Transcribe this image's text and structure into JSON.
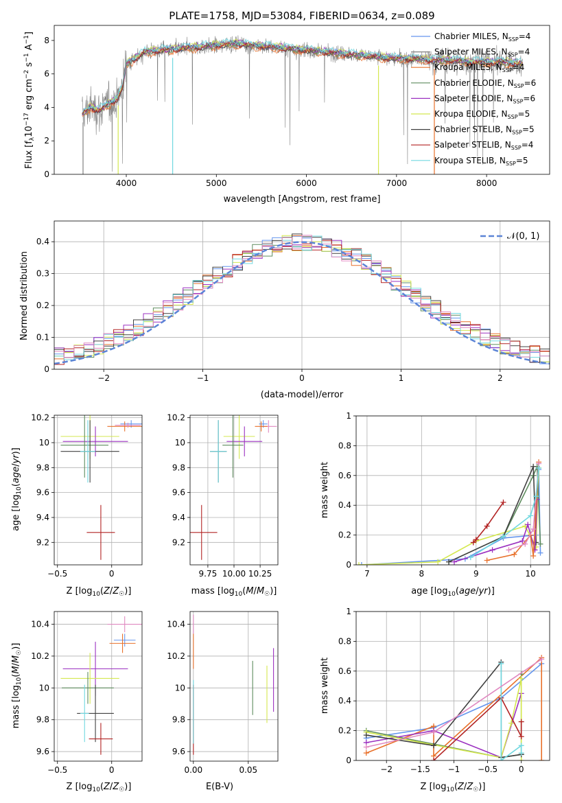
{
  "chart_data": [
    {
      "id": "spectrum",
      "type": "line",
      "title": "PLATE=1758, MJD=53084, FIBERID=0634, z=0.089",
      "xlabel": "wavelength [Angstrom, rest frame]",
      "ylabel": "Flux [f_λ 10^-17 erg cm^-2 s^-1 A^-1]",
      "xlim": [
        3200,
        8700
      ],
      "ylim": [
        0,
        8.9
      ],
      "xticks": [
        4000,
        5000,
        6000,
        7000,
        8000
      ],
      "yticks": [
        0,
        2,
        4,
        6,
        8
      ],
      "grid": false,
      "legend_position": "top-right",
      "observed_trend": {
        "x": [
          3500,
          3600,
          3700,
          3800,
          3900,
          3960,
          4000,
          4100,
          4200,
          4400,
          4600,
          4800,
          5000,
          5200,
          5400,
          5600,
          5800,
          6000,
          6200,
          6400,
          6600,
          6800,
          7000,
          7200,
          7400,
          7600,
          7800,
          8000,
          8200,
          8400
        ],
        "y": [
          3.5,
          4.0,
          3.8,
          4.2,
          4.5,
          5.2,
          6.6,
          6.9,
          7.3,
          7.4,
          7.5,
          7.6,
          7.7,
          7.8,
          7.7,
          7.6,
          7.5,
          7.4,
          7.3,
          7.2,
          7.1,
          7.0,
          6.9,
          6.9,
          6.8,
          6.8,
          6.7,
          6.7,
          6.7,
          6.6
        ]
      },
      "series": [
        {
          "name": "Chabrier MILES, N_SSP=4",
          "color": "#6495ed"
        },
        {
          "name": "Salpeter MILES, N_SSP=4",
          "color": "#808080"
        },
        {
          "name": "Kroupa MILES, N_SSP=4",
          "color": "#e8702a"
        },
        {
          "name": "Chabrier ELODIE, N_SSP=6",
          "color": "#5e8c5e"
        },
        {
          "name": "Salpeter ELODIE, N_SSP=6",
          "color": "#9b30c0"
        },
        {
          "name": "Kroupa ELODIE, N_SSP=5",
          "color": "#d4e84f"
        },
        {
          "name": "Chabrier STELIB, N_SSP=5",
          "color": "#404040"
        },
        {
          "name": "Salpeter STELIB, N_SSP=4",
          "color": "#b22222"
        },
        {
          "name": "Kroupa STELIB, N_SSP=5",
          "color": "#70d8e0"
        }
      ]
    },
    {
      "id": "residuals",
      "type": "line",
      "xlabel": "(data-model)/error",
      "ylabel": "Normed distribution",
      "xlim": [
        -2.5,
        2.5
      ],
      "ylim": [
        0,
        0.465
      ],
      "xticks": [
        -2,
        -1,
        0,
        1,
        2
      ],
      "yticks": [
        0.0,
        0.1,
        0.2,
        0.3,
        0.4
      ],
      "grid": true,
      "legend": "𝒩(0, 1)",
      "legend_position": "top-right",
      "histogram_colors": [
        "#6495ed",
        "#e8702a",
        "#5e8c5e",
        "#9b30c0",
        "#d4e84f",
        "#404040",
        "#b22222",
        "#70d8e0",
        "#e088c0"
      ],
      "bin_width": 0.1
    },
    {
      "id": "age-vs-z",
      "type": "scatter",
      "xlabel": "Z [log10(Z/Z☉)]",
      "ylabel": "age [log10(age/yr)]",
      "xlim": [
        -0.53,
        0.28
      ],
      "ylim": [
        9.02,
        10.22
      ],
      "xticks": [
        -0.5,
        0.0
      ],
      "yticks": [
        9.2,
        9.4,
        9.6,
        9.8,
        10.0,
        10.2
      ],
      "grid": true,
      "points": [
        {
          "color": "#6495ed",
          "x": 0.18,
          "xerr": 0.1,
          "y": 10.15,
          "yerr": 0.03
        },
        {
          "color": "#e8702a",
          "x": 0.12,
          "xerr": 0.16,
          "y": 10.13,
          "yerr": 0.04
        },
        {
          "color": "#e088c0",
          "x": 0.15,
          "xerr": 0.12,
          "y": 10.14,
          "yerr": 0.02
        },
        {
          "color": "#d4e84f",
          "x": -0.2,
          "xerr": 0.27,
          "y": 10.05,
          "yerr": 0.18
        },
        {
          "color": "#9b30c0",
          "x": -0.15,
          "xerr": 0.3,
          "y": 10.01,
          "yerr": 0.12
        },
        {
          "color": "#5e8c5e",
          "x": -0.25,
          "xerr": 0.22,
          "y": 9.98,
          "yerr": 0.26
        },
        {
          "color": "#404040",
          "x": -0.2,
          "xerr": 0.27,
          "y": 9.93,
          "yerr": 0.25
        },
        {
          "color": "#70d8e0",
          "x": -0.22,
          "xerr": 0.07,
          "y": 9.93,
          "yerr": 0.25
        },
        {
          "color": "#b22222",
          "x": -0.1,
          "xerr": 0.13,
          "y": 9.28,
          "yerr": 0.22
        }
      ]
    },
    {
      "id": "age-vs-mass",
      "type": "scatter",
      "xlabel": "mass [log10(M/M☉)]",
      "ylabel": "",
      "xlim": [
        9.58,
        10.42
      ],
      "ylim": [
        9.02,
        10.22
      ],
      "xticks": [
        9.75,
        10.0,
        10.25
      ],
      "xticklabels": [
        "9.75",
        "10.00",
        "10.25"
      ],
      "yticks": [
        9.2,
        9.4,
        9.6,
        9.8,
        10.0,
        10.2
      ],
      "grid": true,
      "points": [
        {
          "color": "#e088c0",
          "x": 10.33,
          "xerr": 0.08,
          "y": 10.13,
          "yerr": 0.05
        },
        {
          "color": "#6495ed",
          "x": 10.28,
          "xerr": 0.04,
          "y": 10.15,
          "yerr": 0.03
        },
        {
          "color": "#e8702a",
          "x": 10.26,
          "xerr": 0.06,
          "y": 10.13,
          "yerr": 0.04
        },
        {
          "color": "#d4e84f",
          "x": 10.05,
          "xerr": 0.15,
          "y": 10.05,
          "yerr": 0.18
        },
        {
          "color": "#9b30c0",
          "x": 10.1,
          "xerr": 0.17,
          "y": 10.01,
          "yerr": 0.12
        },
        {
          "color": "#5e8c5e",
          "x": 9.99,
          "xerr": 0.1,
          "y": 9.98,
          "yerr": 0.26
        },
        {
          "color": "#404040",
          "x": 9.85,
          "xerr": 0.08,
          "y": 9.93,
          "yerr": 0.25
        },
        {
          "color": "#70d8e0",
          "x": 9.85,
          "xerr": 0.08,
          "y": 9.93,
          "yerr": 0.25
        },
        {
          "color": "#b22222",
          "x": 9.69,
          "xerr": 0.15,
          "y": 9.28,
          "yerr": 0.22
        }
      ]
    },
    {
      "id": "mass-weight-vs-age",
      "type": "line",
      "xlabel": "age [log10(age/yr)]",
      "ylabel": "mass weight",
      "xlim": [
        6.8,
        10.35
      ],
      "ylim": [
        0,
        1.0
      ],
      "xticks": [
        7,
        8,
        9,
        10
      ],
      "yticks": [
        0.0,
        0.2,
        0.4,
        0.6,
        0.8,
        1.0
      ],
      "grid": true,
      "series": [
        {
          "color": "#6495ed",
          "x": [
            6.9,
            8.8,
            9.5,
            10.1,
            10.15,
            10.18
          ],
          "y": [
            0.0,
            0.04,
            0.18,
            0.2,
            0.64,
            0.08
          ]
        },
        {
          "color": "#d4e84f",
          "x": [
            6.85,
            8.3,
            9.0,
            9.9,
            10.1,
            10.15
          ],
          "y": [
            0.0,
            0.02,
            0.16,
            0.26,
            0.12,
            0.65
          ]
        },
        {
          "color": "#5e8c5e",
          "x": [
            8.5,
            9.5,
            10.05,
            10.12,
            10.18
          ],
          "y": [
            0.02,
            0.19,
            0.6,
            0.66,
            0.14
          ]
        },
        {
          "color": "#404040",
          "x": [
            8.5,
            9.5,
            10.05,
            10.1
          ],
          "y": [
            0.02,
            0.19,
            0.66,
            0.15
          ]
        },
        {
          "color": "#b22222",
          "x": [
            8.95,
            9.0,
            9.2,
            9.5
          ],
          "y": [
            0.15,
            0.17,
            0.26,
            0.42
          ]
        },
        {
          "color": "#9b30c0",
          "x": [
            8.6,
            9.3,
            9.85,
            9.95,
            10.08,
            10.12
          ],
          "y": [
            0.02,
            0.1,
            0.16,
            0.27,
            0.1,
            0.44
          ]
        },
        {
          "color": "#e8702a",
          "x": [
            9.2,
            9.7,
            10.0,
            10.05,
            10.15
          ],
          "y": [
            0.03,
            0.07,
            0.2,
            0.06,
            0.69
          ]
        },
        {
          "color": "#e088c0",
          "x": [
            9.6,
            9.9,
            10.05,
            10.15
          ],
          "y": [
            0.1,
            0.14,
            0.24,
            0.68
          ]
        },
        {
          "color": "#70d8e0",
          "x": [
            8.9,
            9.5,
            10.0,
            10.1,
            10.15
          ],
          "y": [
            0.05,
            0.19,
            0.33,
            0.46,
            0.65
          ]
        }
      ]
    },
    {
      "id": "mass-vs-z",
      "type": "scatter",
      "xlabel": "Z [log10(Z/Z☉)]",
      "ylabel": "mass [log10(M/M☉)]",
      "xlim": [
        -0.53,
        0.28
      ],
      "ylim": [
        9.54,
        10.48
      ],
      "xticks": [
        -0.5,
        0.0
      ],
      "yticks": [
        9.6,
        9.8,
        10.0,
        10.2,
        10.4
      ],
      "grid": true,
      "points": [
        {
          "color": "#e088c0",
          "x": 0.12,
          "xerr": 0.16,
          "y": 10.4,
          "yerr": 0.05
        },
        {
          "color": "#6495ed",
          "x": 0.12,
          "xerr": 0.1,
          "y": 10.3,
          "yerr": 0.04
        },
        {
          "color": "#e8702a",
          "x": 0.1,
          "xerr": 0.12,
          "y": 10.28,
          "yerr": 0.06
        },
        {
          "color": "#9b30c0",
          "x": -0.15,
          "xerr": 0.3,
          "y": 10.12,
          "yerr": 0.17
        },
        {
          "color": "#d4e84f",
          "x": -0.2,
          "xerr": 0.27,
          "y": 10.06,
          "yerr": 0.16
        },
        {
          "color": "#5e8c5e",
          "x": -0.22,
          "xerr": 0.24,
          "y": 10.0,
          "yerr": 0.1
        },
        {
          "color": "#404040",
          "x": -0.15,
          "xerr": 0.17,
          "y": 9.84,
          "yerr": 0.18
        },
        {
          "color": "#70d8e0",
          "x": -0.25,
          "xerr": 0.04,
          "y": 9.84,
          "yerr": 0.18
        },
        {
          "color": "#b22222",
          "x": -0.1,
          "xerr": 0.11,
          "y": 9.68,
          "yerr": 0.1
        }
      ]
    },
    {
      "id": "mass-vs-ebv",
      "type": "scatter",
      "xlabel": "E(B-V)",
      "ylabel": "",
      "xlim": [
        -0.003,
        0.077
      ],
      "ylim": [
        9.54,
        10.48
      ],
      "xticks": [
        0.0,
        0.05
      ],
      "xticklabels": [
        "0.00",
        "0.05"
      ],
      "yticks": [
        9.6,
        9.8,
        10.0,
        10.2,
        10.4
      ],
      "grid": true,
      "points": [
        {
          "color": "#e088c0",
          "x": 0.0,
          "y": 10.4,
          "yerr": 0.06
        },
        {
          "color": "#e8702a",
          "x": 0.0,
          "y": 10.23,
          "yerr": 0.11
        },
        {
          "color": "#b22222",
          "x": 0.0,
          "y": 9.8,
          "yerr": 0.22
        },
        {
          "color": "#70d8e0",
          "x": 0.0,
          "y": 9.85,
          "yerr": 0.2
        },
        {
          "color": "#5e8c5e",
          "x": 0.054,
          "y": 10.0,
          "yerr": 0.17
        },
        {
          "color": "#d4e84f",
          "x": 0.067,
          "y": 9.96,
          "yerr": 0.18
        },
        {
          "color": "#9b30c0",
          "x": 0.073,
          "y": 10.05,
          "yerr": 0.2
        }
      ]
    },
    {
      "id": "mass-weight-vs-z",
      "type": "line",
      "xlabel": "Z [log10(Z/Z☉)]",
      "ylabel": "mass weight",
      "xlim": [
        -2.45,
        0.42
      ],
      "ylim": [
        0,
        1.0
      ],
      "xticks": [
        -2.0,
        -1.5,
        -1.0,
        -0.5,
        0.0
      ],
      "yticks": [
        0.0,
        0.2,
        0.4,
        0.6,
        0.8,
        1.0
      ],
      "grid": true,
      "series": [
        {
          "color": "#6495ed",
          "x": [
            -2.3,
            -1.3,
            -0.3,
            0.3
          ],
          "y": [
            0.15,
            0.22,
            0.42,
            0.65
          ]
        },
        {
          "color": "#e8702a",
          "x": [
            -2.3,
            -1.3,
            -1.3,
            0.3,
            0.3
          ],
          "y": [
            0.05,
            0.23,
            0.03,
            0.69,
            0.0
          ]
        },
        {
          "color": "#5e8c5e",
          "x": [
            -2.3,
            -0.3,
            0.0,
            0.0
          ],
          "y": [
            0.2,
            0.02,
            0.04,
            0.58
          ]
        },
        {
          "color": "#9b30c0",
          "x": [
            -2.3,
            -1.3,
            -0.3,
            0.0
          ],
          "y": [
            0.12,
            0.2,
            0.02,
            0.45
          ]
        },
        {
          "color": "#d4e84f",
          "x": [
            -2.3,
            -0.3,
            -0.15,
            0.0,
            0.0
          ],
          "y": [
            0.19,
            0.02,
            0.25,
            0.55,
            0.0
          ]
        },
        {
          "color": "#404040",
          "x": [
            -2.3,
            -1.3,
            -0.3,
            -0.3,
            0.0
          ],
          "y": [
            0.17,
            0.1,
            0.66,
            0.02,
            0.04
          ]
        },
        {
          "color": "#b22222",
          "x": [
            -1.3,
            -0.3,
            0.0,
            0.0
          ],
          "y": [
            0.0,
            0.42,
            0.16,
            0.26
          ]
        },
        {
          "color": "#70d8e0",
          "x": [
            -0.3,
            -0.3,
            0.0,
            0.0
          ],
          "y": [
            0.65,
            0.0,
            0.1,
            0.05
          ]
        },
        {
          "color": "#e088c0",
          "x": [
            -2.3,
            -1.3,
            0.3
          ],
          "y": [
            0.09,
            0.19,
            0.68
          ]
        }
      ]
    }
  ]
}
